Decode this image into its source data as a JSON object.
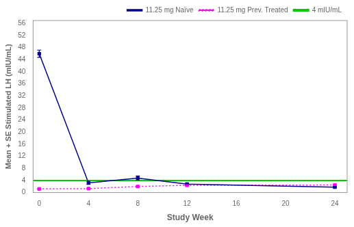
{
  "chart_data": {
    "type": "line",
    "xlabel": "Study Week",
    "ylabel": "Mean + SE Stimulated LH (mIU/mL)",
    "xlim": [
      -0.5,
      25
    ],
    "ylim": [
      0,
      57
    ],
    "xticks": [
      0,
      4,
      8,
      12,
      16,
      20,
      24
    ],
    "yticks": [
      0,
      4,
      8,
      12,
      16,
      20,
      24,
      28,
      32,
      36,
      40,
      44,
      48,
      52,
      56
    ],
    "x": [
      0,
      4,
      8,
      12,
      24
    ],
    "series": [
      {
        "name": "11.25 mg Naïve",
        "color": "#00008B",
        "marker": "square",
        "line_style": "solid",
        "values": [
          46.0,
          3.2,
          4.8,
          2.8,
          1.8
        ],
        "errors": [
          1.2,
          0.5,
          0.7,
          0.3,
          0.2
        ]
      },
      {
        "name": "11.25 mg Prev. Treated",
        "color": "#FF00FF",
        "marker": "square",
        "line_style": "dotted",
        "values": [
          1.2,
          1.3,
          2.0,
          2.4,
          2.5
        ],
        "errors": [
          0.15,
          0.15,
          0.2,
          0.2,
          0.2
        ]
      },
      {
        "name": "4 mIU/mL",
        "type": "hline",
        "color": "#00CC00",
        "line_style": "solid",
        "y": 4.0
      }
    ],
    "grid": false,
    "legend": "upper right"
  }
}
